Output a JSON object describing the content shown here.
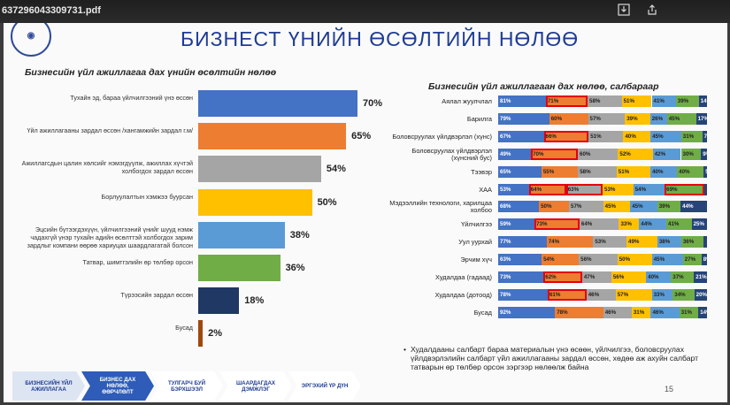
{
  "viewer": {
    "filename": "637296043309731.pdf",
    "download_icon": "download-icon",
    "share_icon": "share-icon"
  },
  "slide": {
    "title": "БИЗНЕСТ ҮНИЙН ӨСӨЛТИЙН НӨЛӨӨ",
    "left_subtitle": "Бизнесийн үйл ажиллагаа дах үнийн өсөлтийн нөлөө",
    "right_subtitle": "Бизнесийн үйл ажиллагаан дах нөлөө, салбараар",
    "page_number": "15",
    "note": "Худалдааны салбарт бараа материалын үнэ өсөөн, үйлчилгээ, боловсруулах үйлдвэрлэлийн салбарт үйл ажиллагааны зардал өссөн, хөдөө аж ахуйн салбарт татварын өр төлбөр орсон зэргээр нөлөөлж байна",
    "note_bullet": "•"
  },
  "left_chart": {
    "type": "bar",
    "categories": [
      "Тухайн эд, бараа үйлчилгээний үнэ өссөн",
      "Үйл ажиллагааны зардал өссөн /хангамжийн зардал г.м/",
      "Ажиллагсдын цалин хөлсийг нэмэгдүүлж, ажиллах хүчтэй холбогдох зардал өссөн",
      "Борлуулалтын хэмжээ буурсан",
      "Эцсийн бүтээгдэхүүн, үйлчилгээний үнийг шууд нэмж чадахгүй үнэр тухайн адийн өсөлттэй холбогдох зарим зардлыг компани өөрөө хариуцах шаардлагатай болсон",
      "Татвар, шимтгэлийн өр төлбөр орсон",
      "Түрээсийн зардал өссөн",
      "Бусад"
    ],
    "values": [
      70,
      65,
      54,
      50,
      38,
      36,
      18,
      2
    ],
    "value_labels": [
      "70%",
      "65%",
      "54%",
      "50%",
      "38%",
      "36%",
      "18%",
      "2%"
    ],
    "colors": [
      "#4472c4",
      "#ed7d31",
      "#a5a5a5",
      "#ffc000",
      "#5b9bd5",
      "#70ad47",
      "#1f3864",
      "#9e480e"
    ],
    "xlim": [
      0,
      100
    ]
  },
  "right_chart": {
    "type": "bar",
    "stacked": true,
    "categories": [
      "Аялал жуулчлал",
      "Барилга",
      "Боловсруулах үйлдвэрлэл (хүнс)",
      "Боловсруулах үйлдвэрлэл (хүнсний бус)",
      "Тээвэр",
      "ХАА",
      "Мэдээллийн технологи, харилцаа холбоо",
      "Үйлчилгээ",
      "Уул уурхай",
      "Эрчим хүч",
      "Худалдаа (гадаад)",
      "Худалдаа (дотоод)",
      "Бусад"
    ],
    "series_colors": [
      "#4472c4",
      "#ed7d31",
      "#a5a5a5",
      "#ffc000",
      "#5b9bd5",
      "#70ad47",
      "#264478",
      "#9e480e"
    ],
    "rows": [
      {
        "values": [
          81,
          71,
          58,
          51,
          41,
          39,
          14
        ],
        "labels": [
          "81%",
          "71%",
          "58%",
          "51%",
          "41%",
          "39%",
          "14%"
        ],
        "highlight": [
          1
        ]
      },
      {
        "values": [
          79,
          60,
          57,
          39,
          26,
          45,
          17
        ],
        "labels": [
          "79%",
          "60%",
          "57%",
          "39%",
          "26%",
          "45%",
          "17%"
        ],
        "highlight": []
      },
      {
        "values": [
          67,
          66,
          51,
          40,
          45,
          31,
          7
        ],
        "labels": [
          "67%",
          "66%",
          "51%",
          "40%",
          "45%",
          "31%",
          "7%"
        ],
        "highlight": [
          1
        ]
      },
      {
        "values": [
          49,
          70,
          60,
          52,
          42,
          30,
          9
        ],
        "labels": [
          "49%",
          "70%",
          "60%",
          "52%",
          "42%",
          "30%",
          "9%"
        ],
        "highlight": [
          1
        ]
      },
      {
        "values": [
          65,
          55,
          58,
          51,
          40,
          40,
          5
        ],
        "labels": [
          "65%",
          "55%",
          "58%",
          "51%",
          "40%",
          "40%",
          "5%"
        ],
        "highlight": []
      },
      {
        "values": [
          53,
          64,
          63,
          53,
          54,
          69,
          4
        ],
        "labels": [
          "53%",
          "64%",
          "63%",
          "53%",
          "54%",
          "69%",
          ""
        ],
        "highlight": [
          1,
          2,
          5
        ]
      },
      {
        "values": [
          68,
          50,
          57,
          45,
          45,
          39,
          44
        ],
        "labels": [
          "68%",
          "50%",
          "57%",
          "45%",
          "45%",
          "39%",
          "44%"
        ],
        "highlight": []
      },
      {
        "values": [
          59,
          73,
          64,
          33,
          44,
          41,
          25
        ],
        "labels": [
          "59%",
          "73%",
          "64%",
          "33%",
          "44%",
          "41%",
          "25%"
        ],
        "highlight": [
          1
        ]
      },
      {
        "values": [
          77,
          74,
          53,
          49,
          38,
          36,
          5
        ],
        "labels": [
          "77%",
          "74%",
          "53%",
          "49%",
          "38%",
          "36%",
          ""
        ],
        "highlight": []
      },
      {
        "values": [
          63,
          54,
          56,
          50,
          45,
          27,
          8
        ],
        "labels": [
          "63%",
          "54%",
          "56%",
          "50%",
          "45%",
          "27%",
          "8%"
        ],
        "highlight": []
      },
      {
        "values": [
          73,
          62,
          47,
          56,
          40,
          37,
          21
        ],
        "labels": [
          "73%",
          "62%",
          "47%",
          "56%",
          "40%",
          "37%",
          "21%"
        ],
        "highlight": [
          1
        ]
      },
      {
        "values": [
          78,
          61,
          46,
          57,
          33,
          34,
          20
        ],
        "labels": [
          "78%",
          "61%",
          "46%",
          "57%",
          "33%",
          "34%",
          "20%"
        ],
        "highlight": [
          1
        ]
      },
      {
        "values": [
          92,
          78,
          46,
          31,
          46,
          31,
          14
        ],
        "labels": [
          "92%",
          "78%",
          "46%",
          "31%",
          "46%",
          "31%",
          "14%"
        ],
        "highlight": []
      }
    ]
  },
  "nav": {
    "steps": [
      {
        "label": "БИЗНЕСИЙН ҮЙЛ АЖИЛЛАГАА",
        "active": false,
        "filled": true
      },
      {
        "label": "БИЗНЕС ДАХ НӨЛӨӨ, ӨӨРЧЛӨЛТ",
        "active": true,
        "filled": true
      },
      {
        "label": "ТУЛГАРЧ БУЙ БЭРХШЭЭЛ",
        "active": false,
        "filled": false
      },
      {
        "label": "ШААРДАГДАХ ДЭМЖЛЭГ",
        "active": false,
        "filled": false
      },
      {
        "label": "ЭРГЭХИЙ ҮР ДҮН",
        "active": false,
        "filled": false
      }
    ]
  }
}
